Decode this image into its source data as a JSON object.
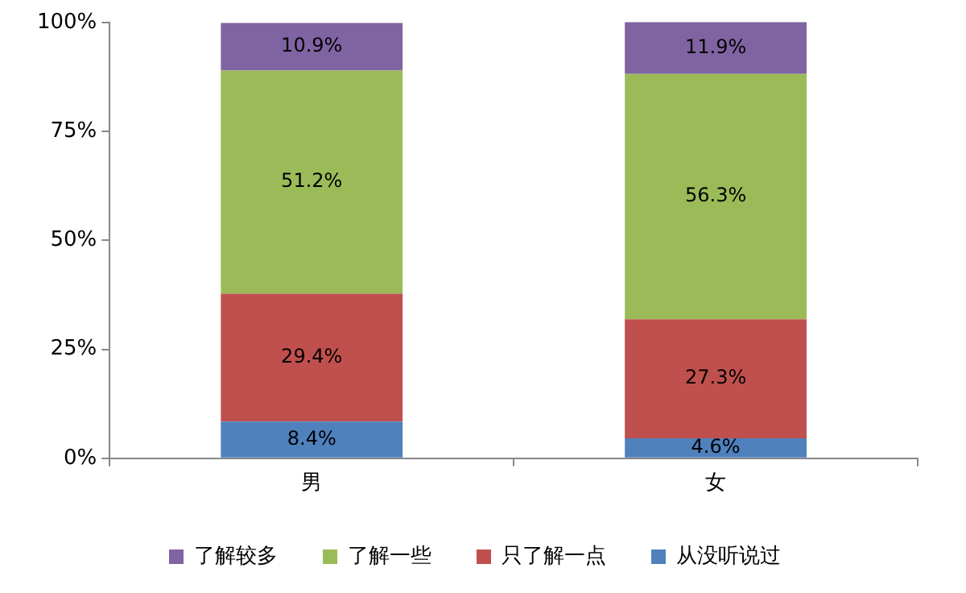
{
  "chart_data": {
    "type": "bar",
    "stacked": true,
    "categories": [
      "男",
      "女"
    ],
    "series": [
      {
        "name": "从没听说过",
        "color": "#4f81bd",
        "values": [
          8.4,
          4.6
        ],
        "value_labels": [
          "8.4%",
          "4.6%"
        ]
      },
      {
        "name": "只了解一点",
        "color": "#c0504d",
        "values": [
          29.4,
          27.3
        ],
        "value_labels": [
          "29.4%",
          "27.3%"
        ]
      },
      {
        "name": "了解一些",
        "color": "#9bbb59",
        "values": [
          51.2,
          56.3
        ],
        "value_labels": [
          "51.2%",
          "56.3%"
        ]
      },
      {
        "name": "了解较多",
        "color": "#8064a2",
        "values": [
          10.9,
          11.9
        ],
        "value_labels": [
          "10.9%",
          "11.9%"
        ]
      }
    ],
    "ylim": [
      0,
      100
    ],
    "yticks": [
      {
        "value": 0,
        "label": "0%"
      },
      {
        "value": 25,
        "label": "25%"
      },
      {
        "value": 50,
        "label": "50%"
      },
      {
        "value": 75,
        "label": "75%"
      },
      {
        "value": 100,
        "label": "100%"
      }
    ],
    "grid": false,
    "legend": "bottom"
  }
}
